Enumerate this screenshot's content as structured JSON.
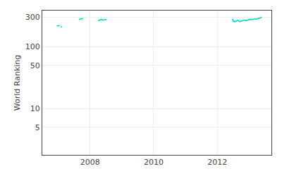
{
  "chart_data": {
    "type": "line",
    "ylabel": "World Ranking",
    "color": "#00d8c8",
    "x": [
      2006.95,
      2007.05,
      null,
      2007.08,
      2007.12,
      null,
      2007.65,
      2007.75,
      2007.78,
      null,
      2008.25,
      2008.35,
      2008.4,
      2008.48,
      2008.52,
      null,
      2012.48,
      2012.5,
      2012.52,
      2012.55,
      2012.6,
      2012.65,
      2012.7,
      2012.75,
      2012.8,
      2012.85,
      2012.9,
      2012.95,
      2013.0,
      2013.05,
      2013.1,
      2013.15,
      2013.2,
      2013.3,
      2013.35,
      2013.4
    ],
    "values": [
      215,
      218,
      null,
      212,
      205,
      null,
      272,
      283,
      278,
      null,
      260,
      273,
      267,
      272,
      268,
      null,
      280,
      255,
      260,
      250,
      258,
      265,
      252,
      258,
      262,
      267,
      263,
      268,
      270,
      275,
      272,
      278,
      275,
      282,
      288,
      295
    ],
    "log": "y",
    "xlim": [
      2006.5,
      2013.7
    ],
    "xticks": [
      2008,
      2010,
      2012
    ],
    "ylim": [
      1.8,
      380
    ],
    "yticks": [
      5,
      10,
      50,
      100,
      300
    ],
    "grid": true
  }
}
